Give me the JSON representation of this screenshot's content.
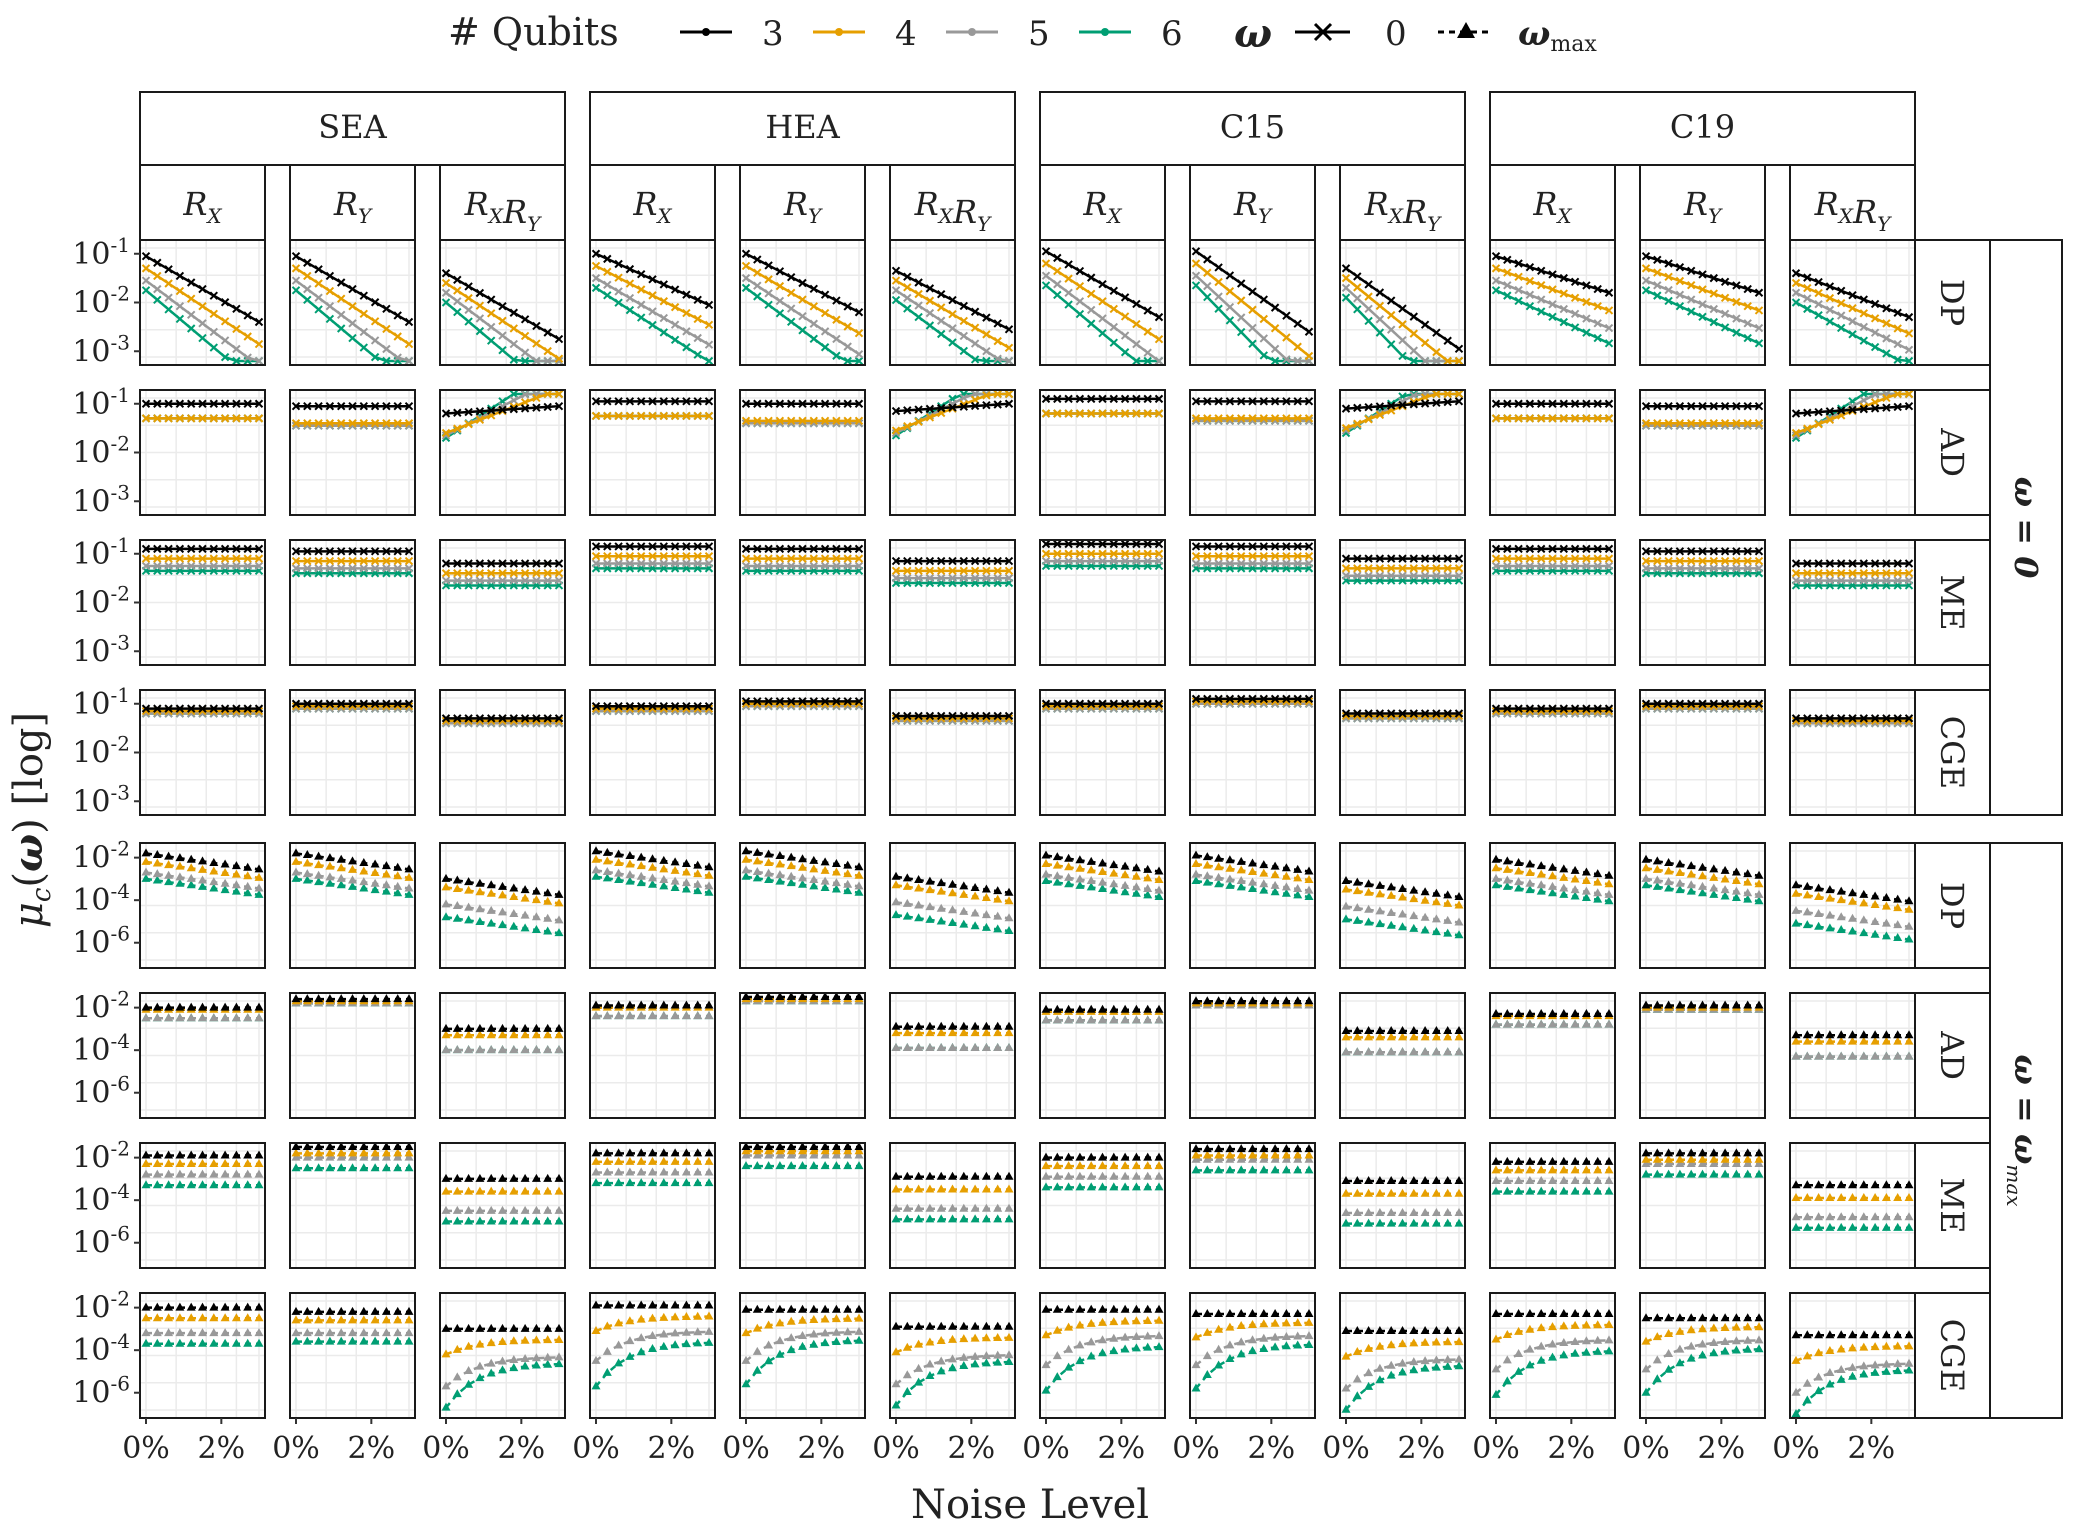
{
  "legend": {
    "qubits_title": "# Qubits",
    "qubits": [
      {
        "label": "3",
        "color": "#000000"
      },
      {
        "label": "4",
        "color": "#E69F00"
      },
      {
        "label": "5",
        "color": "#999999"
      },
      {
        "label": "6",
        "color": "#009E73"
      }
    ],
    "omega_title": "ω",
    "omega_items": [
      {
        "label": "0",
        "marker": "cross",
        "line": "solid"
      },
      {
        "label": "ωmax",
        "marker": "triangle",
        "line": "dashed"
      }
    ]
  },
  "chart_data": {
    "type": "line",
    "x_title": "Noise Level",
    "y_title": "μc(ω) [log]",
    "y_scale": "log",
    "grid": true,
    "legend_position": "top",
    "x_ticks": [
      "0%",
      "2%"
    ],
    "x_values": [
      0,
      0.3,
      0.6,
      0.9,
      1.2,
      1.5,
      1.8,
      2.1,
      2.4,
      2.7,
      3.0
    ],
    "ansatzes": [
      "SEA",
      "HEA",
      "C15",
      "C19"
    ],
    "encodings": [
      "R_X",
      "R_Y",
      "R_X R_Y"
    ],
    "noise_types": [
      "DP",
      "AD",
      "ME",
      "CGE"
    ],
    "row_groups": [
      {
        "label": "ω = 0",
        "y_ticks": [
          "10-1",
          "10-2",
          "10-3"
        ],
        "y_range": [
          -3.2,
          -0.8
        ]
      },
      {
        "label": "ω = ωmax",
        "y_ticks": [
          "10-2",
          "10-4",
          "10-6"
        ],
        "y_range": [
          -7,
          -1.5
        ]
      }
    ],
    "series": [
      {
        "name": "3",
        "color": "#000000"
      },
      {
        "name": "4",
        "color": "#E69F00"
      },
      {
        "name": "5",
        "color": "#999999"
      },
      {
        "name": "6",
        "color": "#009E73"
      }
    ],
    "omega0_start_log10": [
      [
        [
          -1.05,
          -1.3,
          -1.55,
          -1.75
        ],
        [
          -1.05,
          -1.3,
          -1.55,
          -1.75
        ],
        [
          -1.4,
          -1.6,
          -1.8,
          -2.0
        ]
      ],
      [
        [
          -1.0,
          -1.3,
          -1.3,
          -1.3
        ],
        [
          -1.05,
          -1.4,
          -1.45,
          -1.45
        ],
        [
          -1.2,
          -1.6,
          -1.65,
          -1.7
        ]
      ],
      [
        [
          -0.9,
          -1.1,
          -1.25,
          -1.35
        ],
        [
          -0.95,
          -1.15,
          -1.3,
          -1.4
        ],
        [
          -1.2,
          -1.4,
          -1.55,
          -1.65
        ]
      ],
      [
        [
          -1.1,
          -1.15,
          -1.2,
          -1.2
        ],
        [
          -1.0,
          -1.05,
          -1.1,
          -1.1
        ],
        [
          -1.3,
          -1.35,
          -1.4,
          -1.4
        ]
      ]
    ],
    "omega0_dp_slope": [
      [
        -0.45,
        -0.45,
        -0.45
      ],
      [
        -0.35,
        -0.4,
        -0.4
      ],
      [
        -0.45,
        -0.55,
        -0.55
      ],
      [
        -0.25,
        -0.25,
        -0.3
      ]
    ],
    "omegamax_start_log10": [
      [
        [
          -1.8,
          -2.2,
          -2.7,
          -3.0
        ],
        [
          -1.8,
          -2.2,
          -2.7,
          -3.0
        ],
        [
          -3.0,
          -3.4,
          -4.2,
          -4.8
        ]
      ],
      [
        [
          -2.0,
          -2.1,
          -2.5,
          -2.5
        ],
        [
          -1.6,
          -1.7,
          -1.8,
          -1.8
        ],
        [
          -3.0,
          -3.3,
          -4.0,
          -4.0
        ]
      ],
      [
        [
          -1.9,
          -2.3,
          -2.8,
          -3.3
        ],
        [
          -1.5,
          -1.8,
          -2.0,
          -2.5
        ],
        [
          -3.0,
          -3.6,
          -4.5,
          -5.0
        ]
      ],
      [
        [
          -2.0,
          -2.5,
          -3.2,
          -3.7
        ],
        [
          -2.2,
          -2.6,
          -3.2,
          -3.6
        ],
        [
          -3.0,
          -3.5,
          -4.3,
          -4.6
        ]
      ]
    ]
  }
}
